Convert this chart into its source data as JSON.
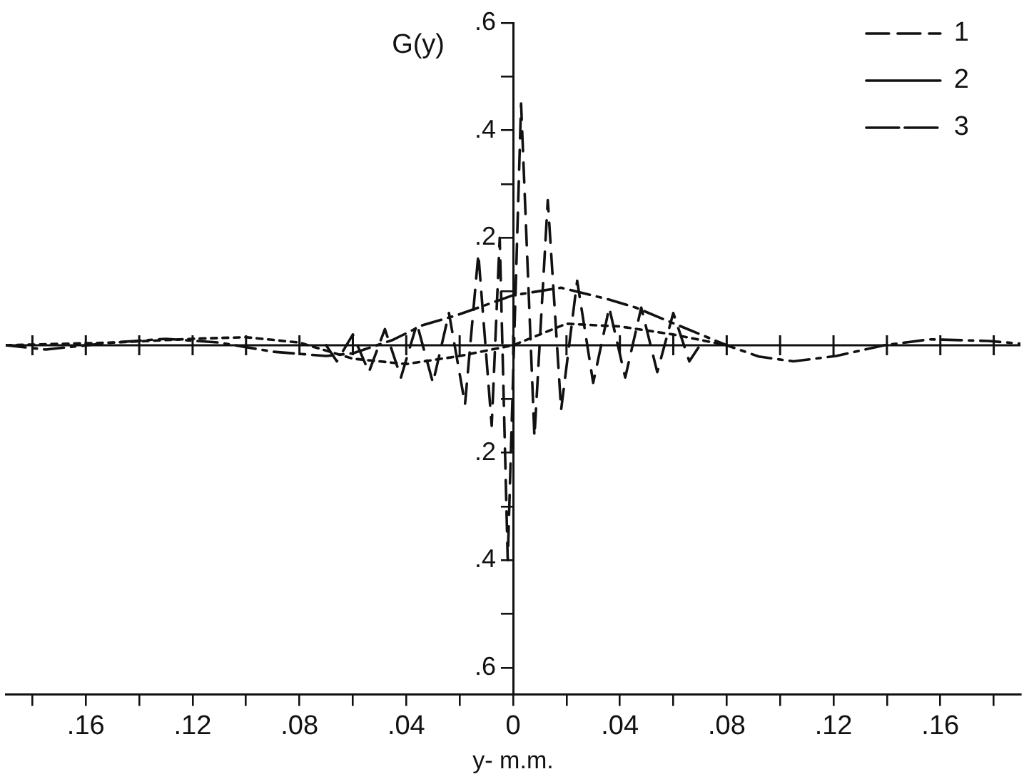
{
  "chart_data": {
    "type": "line",
    "xlabel": "y- m.m.",
    "ylabel": "G(y)",
    "legend": "top right",
    "marker": "none",
    "xlim": [
      -0.19,
      0.19
    ],
    "xticks": [
      {
        "value": -0.18,
        "label": null
      },
      {
        "value": -0.16,
        "label": ".16"
      },
      {
        "value": -0.14,
        "label": null
      },
      {
        "value": -0.12,
        "label": ".12"
      },
      {
        "value": -0.1,
        "label": null
      },
      {
        "value": -0.08,
        "label": ".08"
      },
      {
        "value": -0.06,
        "label": null
      },
      {
        "value": -0.04,
        "label": ".04"
      },
      {
        "value": -0.02,
        "label": null
      },
      0,
      {
        "value": 0.02,
        "label": null
      },
      {
        "value": 0.04,
        "label": ".04"
      },
      {
        "value": 0.06,
        "label": null
      },
      {
        "value": 0.08,
        "label": ".08"
      },
      {
        "value": 0.1,
        "label": null
      },
      {
        "value": 0.12,
        "label": ".12"
      },
      {
        "value": 0.14,
        "label": null
      },
      {
        "value": 0.16,
        "label": ".16"
      },
      {
        "value": 0.18,
        "label": null
      }
    ],
    "ref_lines": [
      {
        "axis": "y",
        "value": 0,
        "color": "#111111",
        "line_style": "solid"
      }
    ],
    "ylim": [
      -0.65,
      0.6
    ],
    "yticks": [
      {
        "value": -0.6,
        "label": ".6"
      },
      {
        "value": -0.5,
        "label": null
      },
      {
        "value": -0.4,
        "label": ".4"
      },
      {
        "value": -0.3,
        "label": null
      },
      {
        "value": -0.2,
        "label": ".2"
      },
      {
        "value": -0.1,
        "label": null
      },
      {
        "value": 0.1,
        "label": null
      },
      {
        "value": 0.2,
        "label": ".2"
      },
      {
        "value": 0.3,
        "label": null
      },
      {
        "value": 0.4,
        "label": ".4"
      },
      {
        "value": 0.5,
        "label": null
      },
      {
        "value": 0.6,
        "label": ".6"
      }
    ],
    "series": [
      {
        "name": "1",
        "color": "#111111",
        "line_style": "dashed",
        "x": [
          -0.07,
          -0.066,
          -0.06,
          -0.054,
          -0.048,
          -0.042,
          -0.036,
          -0.03,
          -0.024,
          -0.018,
          -0.013,
          -0.008,
          -0.005,
          -0.002,
          0.003,
          0.008,
          0.013,
          0.018,
          0.024,
          0.03,
          0.036,
          0.042,
          0.048,
          0.054,
          0.06,
          0.066,
          0.07
        ],
        "values": [
          0,
          -0.03,
          0.02,
          -0.05,
          0.03,
          -0.06,
          0.04,
          -0.07,
          0.06,
          -0.11,
          0.17,
          -0.15,
          0.2,
          -0.4,
          0.45,
          -0.17,
          0.27,
          -0.12,
          0.12,
          -0.07,
          0.07,
          -0.06,
          0.07,
          -0.05,
          0.06,
          -0.03,
          0
        ]
      },
      {
        "name": "2",
        "color": "#111111",
        "line_style": "dotted",
        "x": [
          -0.19,
          -0.15,
          -0.12,
          -0.1,
          -0.08,
          -0.06,
          -0.04,
          -0.02,
          0,
          0.02,
          0.04,
          0.06,
          0.08
        ],
        "values": [
          0,
          0.005,
          0.012,
          0.015,
          0.005,
          -0.025,
          -0.035,
          -0.02,
          0,
          0.04,
          0.035,
          0.02,
          0
        ]
      },
      {
        "name": "3",
        "color": "#111111",
        "line_style": "dashdot",
        "x": [
          -0.19,
          -0.175,
          -0.15,
          -0.13,
          -0.11,
          -0.09,
          -0.07,
          -0.06,
          -0.045,
          -0.034,
          -0.021,
          0,
          0.018,
          0.036,
          0.046,
          0.059,
          0.08,
          0.092,
          0.105,
          0.121,
          0.139,
          0.156,
          0.178,
          0.19
        ],
        "values": [
          0,
          -0.008,
          0.005,
          0.012,
          0.005,
          -0.012,
          -0.02,
          -0.015,
          0.01,
          0.037,
          0.056,
          0.093,
          0.107,
          0.085,
          0.07,
          0.043,
          0,
          -0.021,
          -0.03,
          -0.02,
          0,
          0.011,
          0.008,
          0.003
        ]
      }
    ]
  }
}
